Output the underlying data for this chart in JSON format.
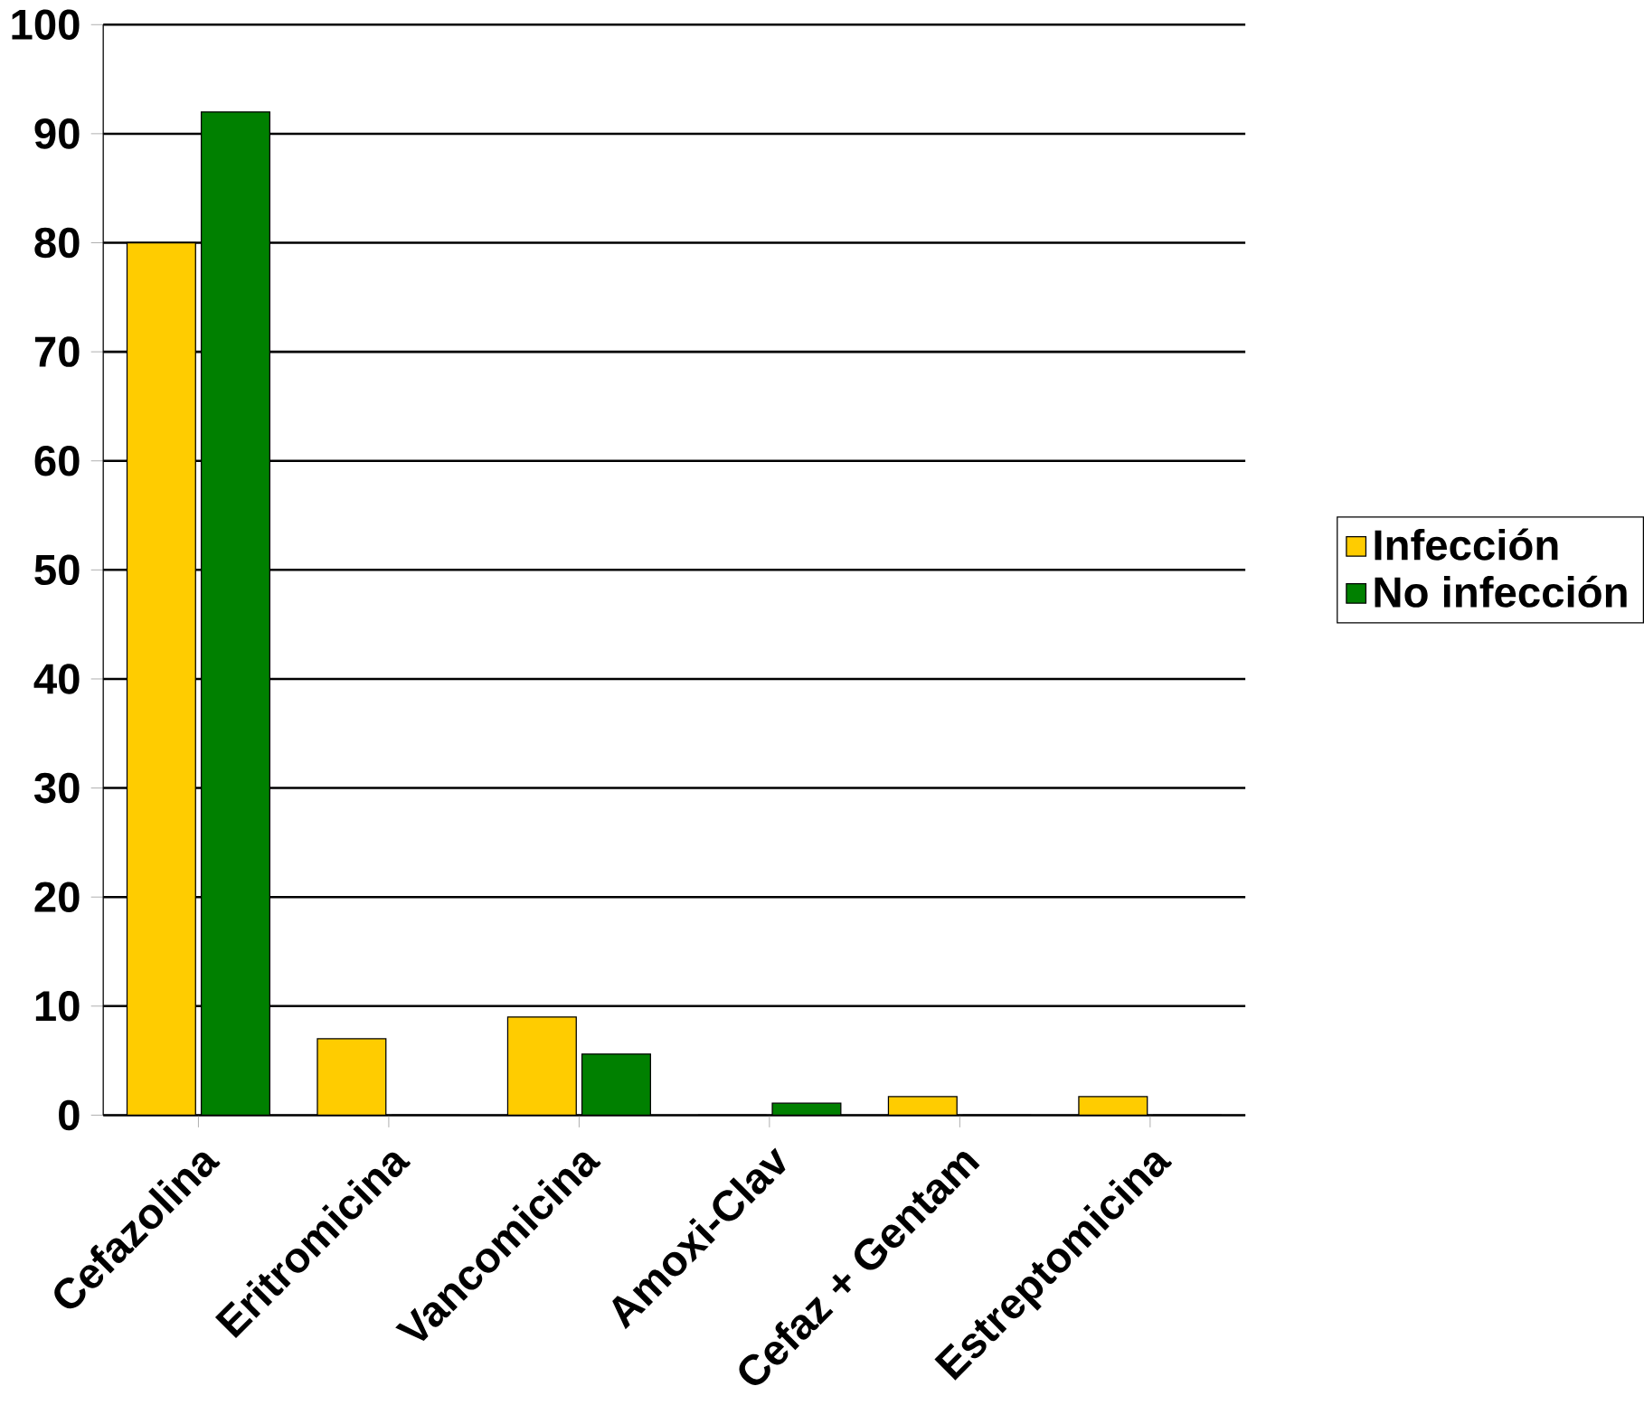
{
  "chart_data": {
    "type": "bar",
    "categories": [
      "Cefazolina",
      "Eritromicina",
      "Vancomicina",
      "Amoxi-Clav",
      "Cefaz + Gentam",
      "Estreptomicina"
    ],
    "series": [
      {
        "name": "Infección",
        "color": "#ffcc00",
        "values": [
          80,
          7,
          9,
          0,
          1.7,
          1.7
        ]
      },
      {
        "name": "No infección",
        "color": "#008000",
        "values": [
          92,
          0,
          5.6,
          1.1,
          0,
          0
        ]
      }
    ],
    "ylim": [
      0,
      100
    ],
    "yticks": [
      0,
      10,
      20,
      30,
      40,
      50,
      60,
      70,
      80,
      90,
      100
    ],
    "grid": "y",
    "legend": "right"
  }
}
